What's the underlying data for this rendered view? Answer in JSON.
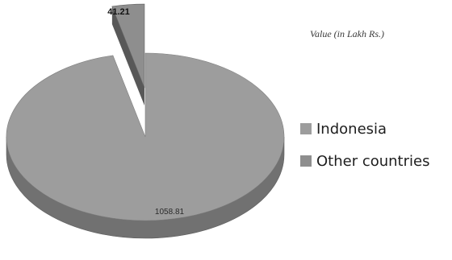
{
  "chart_data": {
    "type": "pie",
    "title": "Value (in Lakh Rs.)",
    "categories": [
      "Indonesia",
      "Other countries"
    ],
    "values": [
      1058.81,
      41.21
    ],
    "data_labels": [
      "1058.81",
      "41.21"
    ],
    "style": "3d-exploded",
    "legend_position": "right",
    "colors": [
      "#9d9d9d",
      "#8e8e8e"
    ]
  }
}
